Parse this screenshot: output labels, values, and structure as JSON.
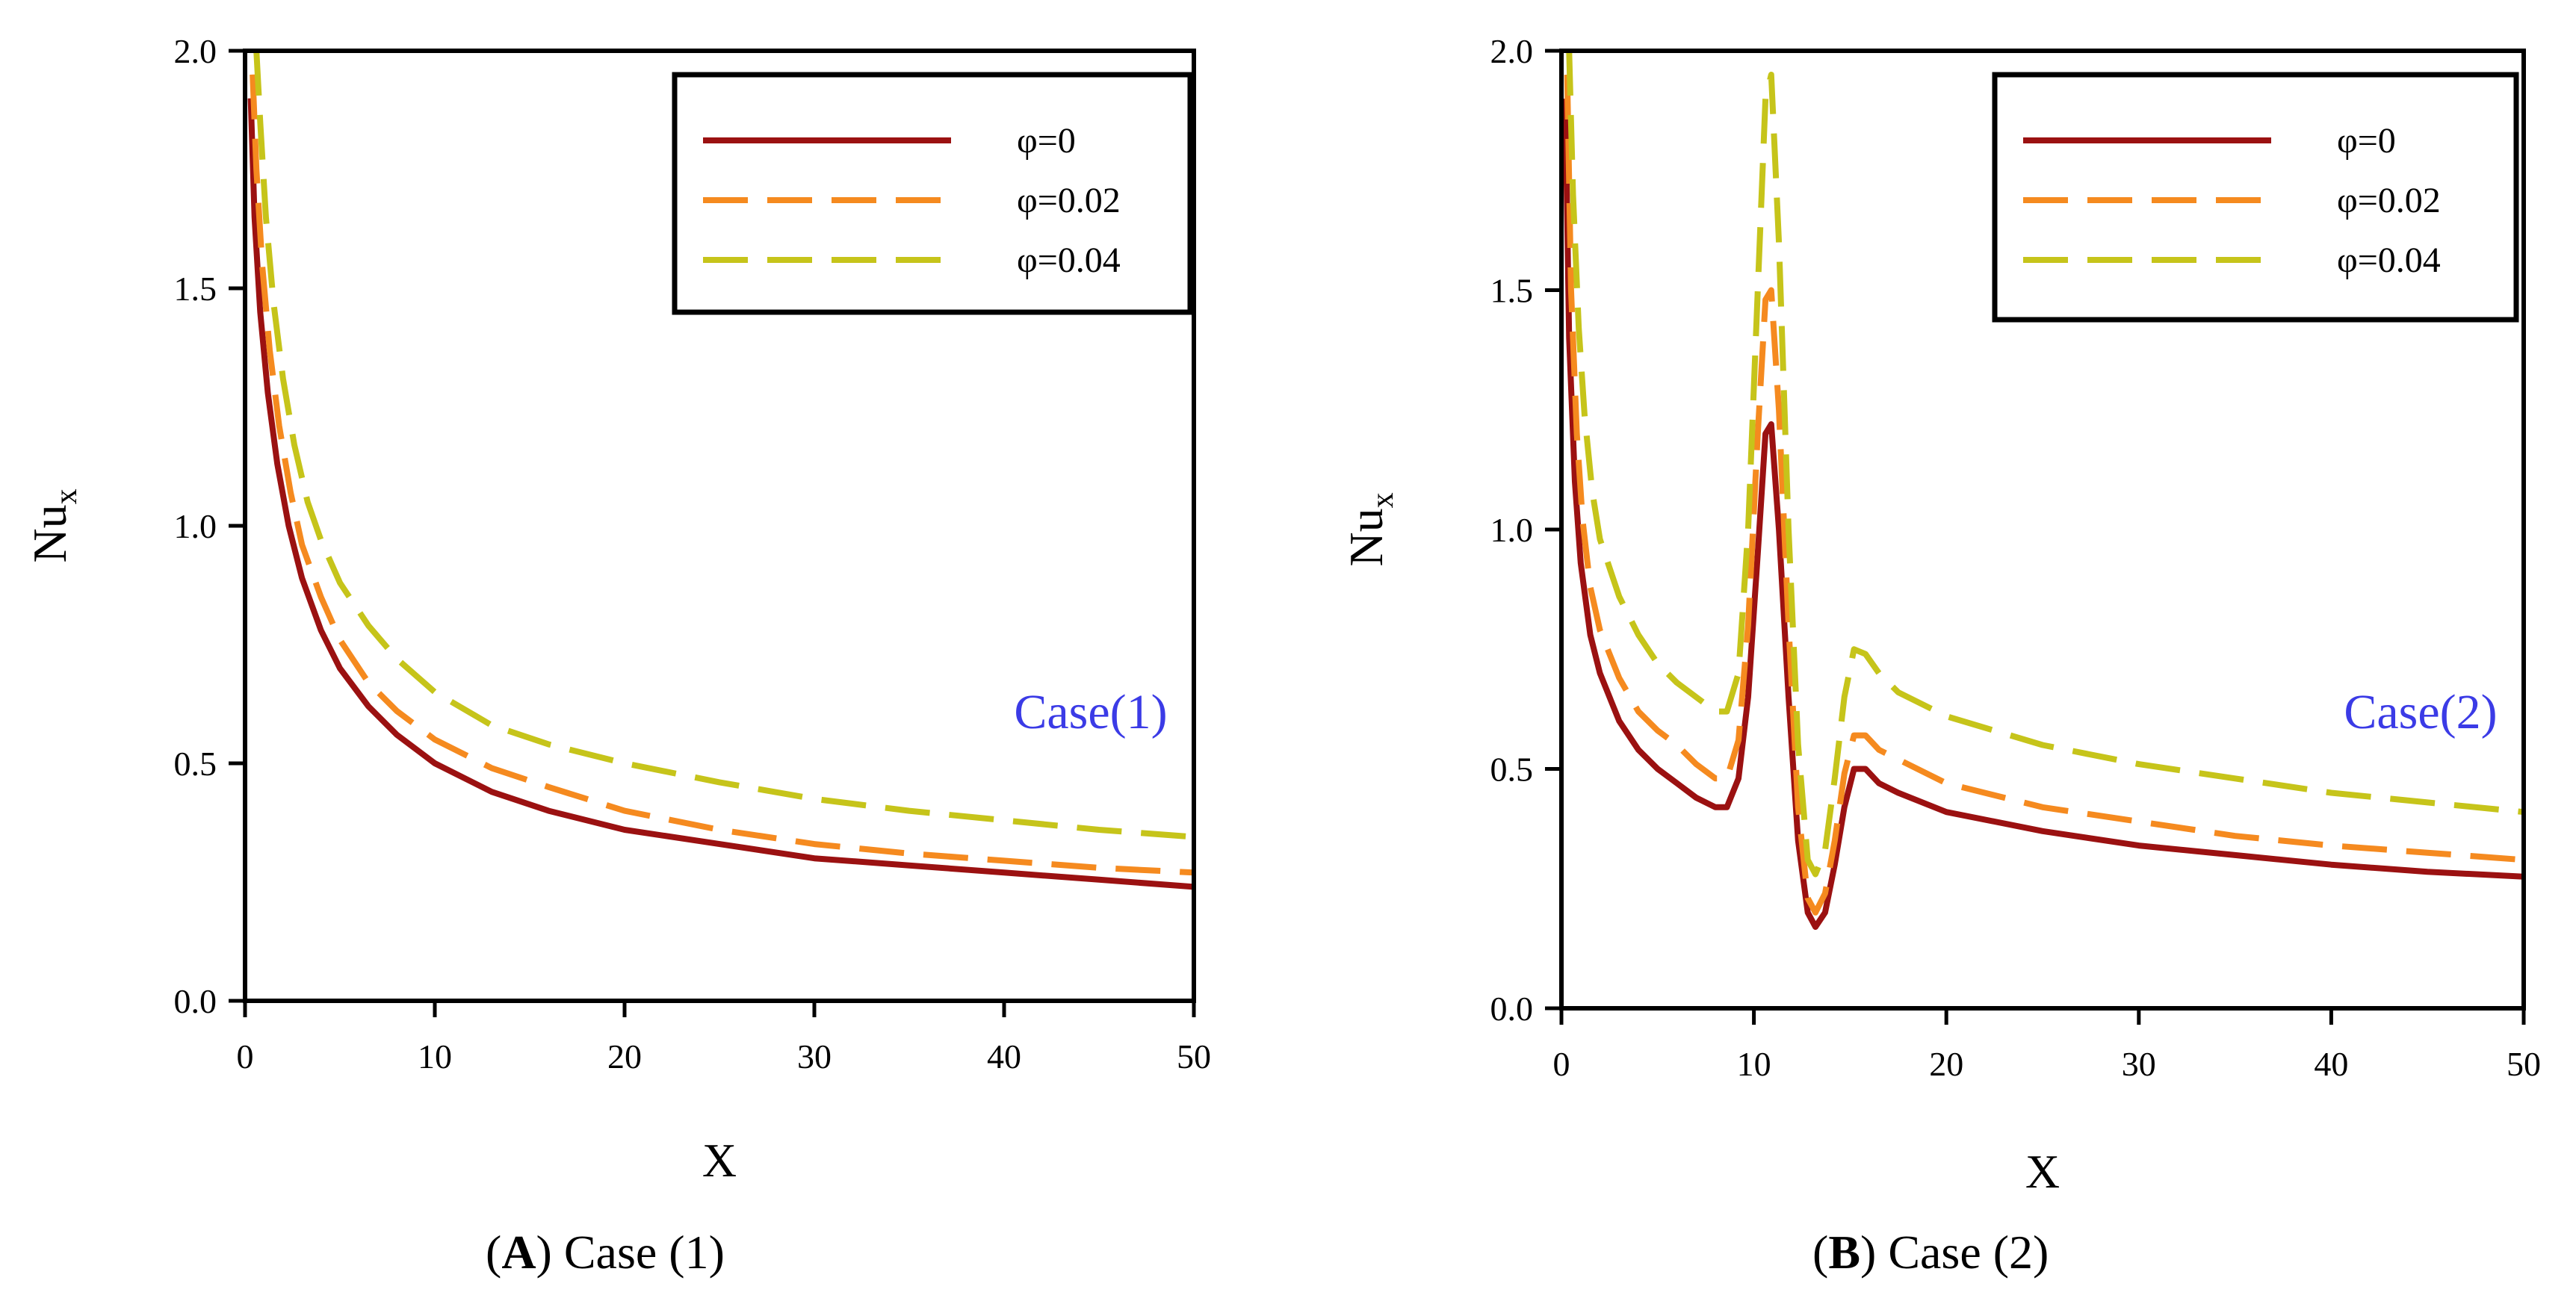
{
  "chart_data": [
    {
      "type": "line",
      "panel": "A",
      "xlabel": "X",
      "ylabel": "Nu",
      "ylabel_sub": "x",
      "xlim": [
        0,
        50
      ],
      "ylim": [
        0,
        2.0
      ],
      "xticks": [
        0,
        10,
        20,
        30,
        40,
        50
      ],
      "yticks": [
        0.0,
        0.5,
        1.0,
        1.5,
        2.0
      ],
      "ytick_labels": [
        "0.0",
        "0.5",
        "1.0",
        "1.5",
        "2.0"
      ],
      "annotation": "Case(1)",
      "legend_position": "top-right",
      "series": [
        {
          "name": "φ=0",
          "color": "#9b1111",
          "dash": "solid",
          "x": [
            0.3,
            0.5,
            0.8,
            1.2,
            1.7,
            2.3,
            3,
            4,
            5,
            6.5,
            8,
            10,
            13,
            16,
            20,
            25,
            30,
            35,
            40,
            45,
            50
          ],
          "y": [
            1.9,
            1.65,
            1.45,
            1.28,
            1.13,
            1.0,
            0.89,
            0.78,
            0.7,
            0.62,
            0.56,
            0.5,
            0.44,
            0.4,
            0.36,
            0.33,
            0.3,
            0.285,
            0.27,
            0.255,
            0.24
          ]
        },
        {
          "name": "φ=0.02",
          "color": "#f58a1f",
          "dash": "dashed",
          "x": [
            0.4,
            0.6,
            0.9,
            1.3,
            1.8,
            2.4,
            3,
            4,
            5,
            6.5,
            8,
            10,
            13,
            16,
            20,
            25,
            30,
            35,
            40,
            45,
            50
          ],
          "y": [
            1.95,
            1.75,
            1.55,
            1.37,
            1.21,
            1.07,
            0.96,
            0.85,
            0.76,
            0.67,
            0.61,
            0.55,
            0.49,
            0.45,
            0.4,
            0.36,
            0.33,
            0.31,
            0.295,
            0.28,
            0.27
          ]
        },
        {
          "name": "φ=0.04",
          "color": "#c6c41a",
          "dash": "dashed",
          "x": [
            0.6,
            0.8,
            1.1,
            1.5,
            2,
            2.6,
            3.3,
            4,
            5,
            6.5,
            8,
            10,
            13,
            16,
            20,
            25,
            30,
            35,
            40,
            45,
            50
          ],
          "y": [
            2.0,
            1.85,
            1.65,
            1.47,
            1.31,
            1.17,
            1.05,
            0.97,
            0.88,
            0.79,
            0.72,
            0.65,
            0.58,
            0.54,
            0.5,
            0.46,
            0.425,
            0.4,
            0.38,
            0.36,
            0.345
          ]
        }
      ]
    },
    {
      "type": "line",
      "panel": "B",
      "xlabel": "X",
      "ylabel": "Nu",
      "ylabel_sub": "x",
      "xlim": [
        0,
        50
      ],
      "ylim": [
        0,
        2.0
      ],
      "xticks": [
        0,
        10,
        20,
        30,
        40,
        50
      ],
      "yticks": [
        0.0,
        0.5,
        1.0,
        1.5,
        2.0
      ],
      "ytick_labels": [
        "0.0",
        "0.5",
        "1.0",
        "1.5",
        "2.0"
      ],
      "annotation": "Case(2)",
      "legend_position": "top-right",
      "series": [
        {
          "name": "φ=0",
          "color": "#9b1111",
          "dash": "solid",
          "x": [
            0.2,
            0.4,
            0.7,
            1,
            1.5,
            2,
            3,
            4,
            5,
            6,
            7,
            8,
            8.6,
            9.2,
            9.7,
            10.2,
            10.6,
            10.9,
            11.3,
            11.8,
            12.3,
            12.8,
            13.2,
            13.7,
            14.2,
            14.7,
            15.2,
            15.8,
            16.5,
            17.5,
            20,
            25,
            30,
            35,
            40,
            45,
            50
          ],
          "y": [
            1.9,
            1.4,
            1.1,
            0.93,
            0.78,
            0.7,
            0.6,
            0.54,
            0.5,
            0.47,
            0.44,
            0.42,
            0.42,
            0.48,
            0.65,
            0.95,
            1.2,
            1.22,
            1.0,
            0.65,
            0.35,
            0.2,
            0.17,
            0.2,
            0.3,
            0.42,
            0.5,
            0.5,
            0.47,
            0.45,
            0.41,
            0.37,
            0.34,
            0.32,
            0.3,
            0.285,
            0.275
          ]
        },
        {
          "name": "φ=0.02",
          "color": "#f58a1f",
          "dash": "dashed",
          "x": [
            0.3,
            0.5,
            0.8,
            1.1,
            1.5,
            2,
            3,
            4,
            5,
            6,
            7,
            8,
            8.6,
            9.2,
            9.7,
            10.2,
            10.6,
            10.9,
            11.3,
            11.8,
            12.3,
            12.8,
            13.2,
            13.7,
            14.2,
            14.7,
            15.2,
            15.8,
            16.5,
            17.5,
            20,
            25,
            30,
            35,
            40,
            45,
            50
          ],
          "y": [
            1.95,
            1.5,
            1.2,
            1.02,
            0.88,
            0.79,
            0.69,
            0.62,
            0.58,
            0.55,
            0.51,
            0.48,
            0.48,
            0.56,
            0.8,
            1.2,
            1.48,
            1.5,
            1.25,
            0.8,
            0.42,
            0.23,
            0.2,
            0.24,
            0.35,
            0.49,
            0.57,
            0.57,
            0.54,
            0.52,
            0.47,
            0.42,
            0.39,
            0.36,
            0.34,
            0.325,
            0.31
          ]
        },
        {
          "name": "φ=0.04",
          "color": "#c6c41a",
          "dash": "dashed",
          "x": [
            0.4,
            0.6,
            0.9,
            1.2,
            1.6,
            2,
            3,
            4,
            5,
            6,
            7,
            8,
            8.6,
            9.2,
            9.7,
            10.2,
            10.6,
            10.9,
            11.3,
            11.8,
            12.3,
            12.8,
            13.2,
            13.7,
            14.2,
            14.7,
            15.2,
            15.8,
            16.5,
            17.5,
            20,
            25,
            30,
            35,
            40,
            45,
            50
          ],
          "y": [
            2.0,
            1.7,
            1.42,
            1.24,
            1.08,
            0.98,
            0.86,
            0.78,
            0.72,
            0.68,
            0.65,
            0.62,
            0.62,
            0.7,
            1.0,
            1.5,
            1.9,
            1.95,
            1.6,
            1.0,
            0.55,
            0.31,
            0.28,
            0.33,
            0.48,
            0.65,
            0.75,
            0.74,
            0.7,
            0.66,
            0.61,
            0.55,
            0.51,
            0.48,
            0.45,
            0.43,
            0.41
          ]
        }
      ]
    }
  ],
  "captions": [
    {
      "letter": "A",
      "open": "(",
      "close": ")",
      "text": " Case (1)"
    },
    {
      "letter": "B",
      "open": "(",
      "close": ")",
      "text": " Case (2)"
    }
  ]
}
